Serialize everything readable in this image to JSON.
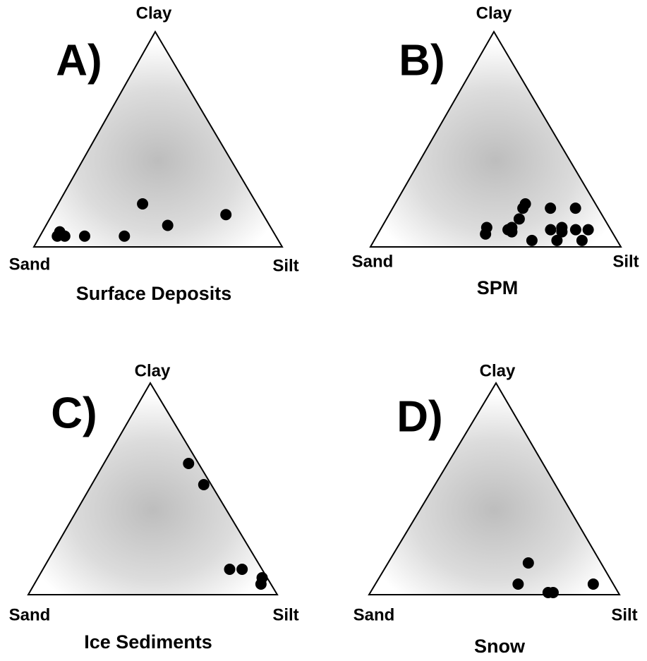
{
  "chart_data": [
    {
      "type": "ternary",
      "label": "A)",
      "title": "Surface Deposits",
      "axes": {
        "top": "Clay",
        "left": "Sand",
        "right": "Silt"
      },
      "color": "#000000",
      "clay": [
        7,
        5,
        5,
        5,
        5,
        20,
        10,
        15
      ],
      "silt": [
        7,
        10,
        7,
        18,
        34,
        34,
        49,
        70
      ],
      "sand": [
        86,
        85,
        88,
        77,
        61,
        46,
        41,
        15
      ]
    },
    {
      "type": "ternary",
      "label": "B)",
      "title": "SPM",
      "axes": {
        "top": "Clay",
        "left": "Sand",
        "right": "Silt"
      },
      "color": "#000000",
      "clay": [
        9,
        6,
        8,
        9,
        7,
        13,
        20,
        18,
        18,
        8,
        9,
        7,
        18,
        8,
        8,
        3,
        3,
        3
      ],
      "silt": [
        42,
        43,
        51,
        52,
        53,
        53,
        52,
        52,
        63,
        68,
        72,
        73,
        73,
        78,
        83,
        63,
        73,
        83
      ],
      "sand": [
        49,
        51,
        41,
        39,
        40,
        34,
        28,
        30,
        19,
        24,
        19,
        20,
        9,
        14,
        9,
        34,
        24,
        14
      ]
    },
    {
      "type": "ternary",
      "label": "C)",
      "title": "Ice Sediments",
      "axes": {
        "top": "Clay",
        "left": "Sand",
        "right": "Silt"
      },
      "color": "#000000",
      "clay": [
        62,
        52,
        12,
        12,
        8,
        5
      ],
      "silt": [
        34,
        45,
        75,
        80,
        90,
        91
      ],
      "sand": [
        4,
        3,
        13,
        8,
        2,
        4
      ]
    },
    {
      "type": "ternary",
      "label": "D)",
      "title": "Snow",
      "axes": {
        "top": "Clay",
        "left": "Sand",
        "right": "Silt"
      },
      "color": "#000000",
      "clay": [
        15,
        5,
        1,
        1,
        5
      ],
      "silt": [
        56,
        57,
        71,
        73,
        87
      ],
      "sand": [
        29,
        38,
        28,
        26,
        8
      ]
    }
  ]
}
